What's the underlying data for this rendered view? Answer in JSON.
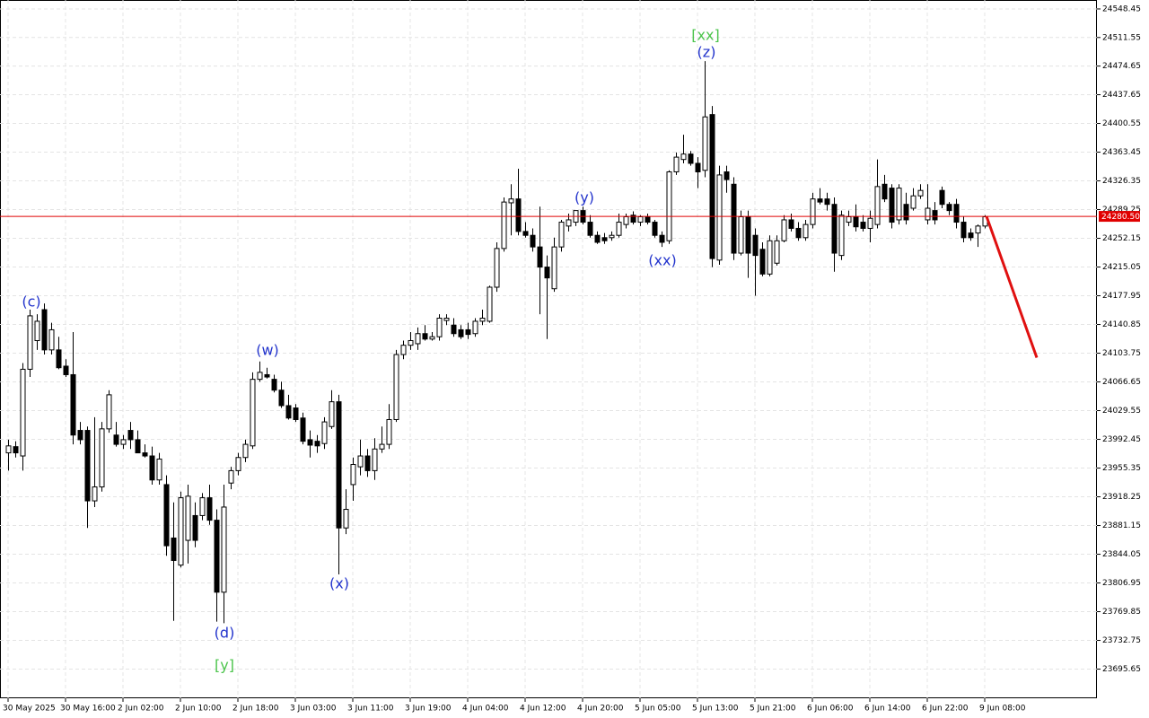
{
  "chart_data": {
    "type": "candlestick",
    "categories": [
      "30 May 2025",
      null,
      null,
      null,
      null,
      null,
      null,
      null,
      "30 May 16:00",
      null,
      null,
      null,
      null,
      null,
      null,
      null,
      "2 Jun 02:00",
      null,
      null,
      null,
      null,
      null,
      null,
      null,
      "2 Jun 10:00",
      null,
      null,
      null,
      null,
      null,
      null,
      null,
      "2 Jun 18:00",
      null,
      null,
      null,
      null,
      null,
      null,
      null,
      "3 Jun 03:00",
      null,
      null,
      null,
      null,
      null,
      null,
      null,
      "3 Jun 11:00",
      null,
      null,
      null,
      null,
      null,
      null,
      null,
      "3 Jun 19:00",
      null,
      null,
      null,
      null,
      null,
      null,
      null,
      "4 Jun 04:00",
      null,
      null,
      null,
      null,
      null,
      null,
      null,
      "4 Jun 12:00",
      null,
      null,
      null,
      null,
      null,
      null,
      null,
      "4 Jun 20:00",
      null,
      null,
      null,
      null,
      null,
      null,
      null,
      "5 Jun 05:00",
      null,
      null,
      null,
      null,
      null,
      null,
      null,
      "5 Jun 13:00",
      null,
      null,
      null,
      null,
      null,
      null,
      null,
      "5 Jun 21:00",
      null,
      null,
      null,
      null,
      null,
      null,
      null,
      "6 Jun 06:00",
      null,
      null,
      null,
      null,
      null,
      null,
      null,
      "6 Jun 14:00",
      null,
      null,
      null,
      null,
      null,
      null,
      null,
      "6 Jun 22:00",
      null,
      null,
      null,
      null,
      null,
      null,
      null,
      "9 Jun 08:00"
    ],
    "open": [
      23975,
      23983,
      23971,
      24083,
      24120,
      24160,
      24108,
      24108,
      24087,
      24076,
      24004,
      24004,
      23913,
      23931,
      24006,
      23998,
      23986,
      24004,
      23992,
      23975,
      23971,
      23940,
      23934,
      23865,
      23830,
      23862,
      23894,
      23894,
      23917,
      23888,
      23795,
      23936,
      23952,
      23969,
      23984,
      24070,
      24076,
      24070,
      24056,
      24036,
      24033,
      24020,
      23992,
      23990,
      23987,
      24009,
      24041,
      23878,
      23934,
      23957,
      23971,
      23952,
      23980,
      23986,
      24018,
      24102,
      24114,
      24116,
      24129,
      24122,
      24125,
      24146,
      24140,
      24134,
      24134,
      24129,
      24145,
      24145,
      24189,
      24239,
      24298,
      24303,
      24261,
      24256,
      24241,
      24215,
      24187,
      24241,
      24268,
      24273,
      24288,
      24273,
      24256,
      24253,
      24253,
      24256,
      24270,
      24282,
      24273,
      24280,
      24273,
      24256,
      24249,
      24338,
      24354,
      24361,
      24349,
      24340,
      24412,
      24224,
      24338,
      24322,
      24233,
      24280,
      24256,
      24238,
      24206,
      24220,
      24249,
      24276,
      24265,
      24253,
      24270,
      24303,
      24303,
      24296,
      24230,
      24273,
      24280,
      24273,
      24265,
      24270,
      24322,
      24317,
      24276,
      24296,
      24291,
      24307,
      24276,
      24288,
      24314,
      24296,
      24296,
      24273,
      24259,
      24259,
      24268
    ],
    "high": [
      23992,
      23990,
      24091,
      24160,
      24154,
      24168,
      24143,
      24125,
      24096,
      24131,
      24015,
      24009,
      24021,
      24015,
      24056,
      24015,
      23998,
      24015,
      24004,
      23986,
      23983,
      23975,
      23946,
      23911,
      23925,
      23934,
      23911,
      23923,
      23934,
      23902,
      23934,
      23957,
      23975,
      23992,
      24079,
      24093,
      24085,
      24076,
      24067,
      24050,
      24038,
      24027,
      24004,
      23998,
      24021,
      24056,
      24050,
      23928,
      23969,
      23992,
      23980,
      23994,
      24009,
      24038,
      24108,
      24120,
      24131,
      24137,
      24140,
      24131,
      24154,
      24154,
      24149,
      24140,
      24143,
      24149,
      24160,
      24191,
      24247,
      24305,
      24322,
      24342,
      24273,
      24265,
      24293,
      24230,
      24253,
      24276,
      24284,
      24288,
      24293,
      24282,
      24261,
      24259,
      24261,
      24284,
      24284,
      24287,
      24282,
      24284,
      24276,
      24261,
      24340,
      24363,
      24386,
      24365,
      24357,
      24481,
      24423,
      24346,
      24346,
      24331,
      24288,
      24288,
      24265,
      24247,
      24256,
      24256,
      24282,
      24284,
      24273,
      24276,
      24311,
      24317,
      24311,
      24305,
      24288,
      24288,
      24296,
      24282,
      24288,
      24354,
      24334,
      24322,
      24322,
      24311,
      24317,
      24322,
      24322,
      24299,
      24319,
      24299,
      24303,
      24280,
      24265,
      24270,
      24282
    ],
    "low": [
      23952,
      23969,
      23952,
      24073,
      24108,
      24102,
      24102,
      24083,
      24073,
      23986,
      23986,
      23878,
      23905,
      23925,
      24001,
      23983,
      23980,
      23980,
      23975,
      23969,
      23934,
      23934,
      23842,
      23758,
      23827,
      23832,
      23853,
      23888,
      23882,
      23757,
      23755,
      23928,
      23946,
      23963,
      23980,
      24067,
      24071,
      24053,
      24033,
      24018,
      24015,
      23986,
      23969,
      23975,
      23980,
      24006,
      23818,
      23870,
      23913,
      23946,
      23944,
      23940,
      23975,
      23980,
      24015,
      24096,
      24108,
      24108,
      24120,
      24120,
      24120,
      24140,
      24125,
      24122,
      24122,
      24125,
      24140,
      24143,
      24183,
      24235,
      24256,
      24256,
      24253,
      24235,
      24154,
      24122,
      24183,
      24235,
      24261,
      24268,
      24270,
      24253,
      24245,
      24245,
      24249,
      24253,
      24265,
      24270,
      24268,
      24270,
      24253,
      24241,
      24245,
      24334,
      24349,
      24346,
      24317,
      24331,
      24215,
      24218,
      24311,
      24224,
      24230,
      24201,
      24178,
      24203,
      24203,
      24217,
      24247,
      24261,
      24249,
      24249,
      24265,
      24296,
      24288,
      24209,
      24224,
      24268,
      24261,
      24261,
      24247,
      24265,
      24299,
      24265,
      24270,
      24270,
      24288,
      24303,
      24270,
      24270,
      24291,
      24282,
      24265,
      24247,
      24249,
      24241,
      24265
    ],
    "close": [
      23984,
      23975,
      24083,
      24152,
      24145,
      24108,
      24134,
      24085,
      24076,
      23998,
      23992,
      23913,
      23931,
      24006,
      24050,
      23986,
      23992,
      23992,
      23975,
      23971,
      23940,
      23967,
      23855,
      23836,
      23917,
      23919,
      23862,
      23917,
      23888,
      23795,
      23905,
      23952,
      23969,
      23986,
      24070,
      24079,
      24073,
      24056,
      24036,
      24020,
      24018,
      23990,
      23985,
      23984,
      24015,
      24041,
      23878,
      23902,
      23960,
      23971,
      23952,
      23980,
      23986,
      24018,
      24102,
      24114,
      24120,
      24129,
      24122,
      24125,
      24149,
      24149,
      24129,
      24125,
      24128,
      24145,
      24149,
      24189,
      24239,
      24299,
      24303,
      24261,
      24256,
      24241,
      24215,
      24201,
      24241,
      24273,
      24276,
      24288,
      24273,
      24256,
      24247,
      24249,
      24256,
      24273,
      24280,
      24273,
      24280,
      24273,
      24256,
      24247,
      24338,
      24357,
      24361,
      24349,
      24338,
      24409,
      24226,
      24334,
      24328,
      24233,
      24280,
      24233,
      24230,
      24206,
      24249,
      24249,
      24276,
      24265,
      24253,
      24270,
      24303,
      24299,
      24296,
      24233,
      24282,
      24280,
      24267,
      24265,
      24278,
      24319,
      24303,
      24273,
      24317,
      24276,
      24307,
      24314,
      24291,
      24276,
      24296,
      24288,
      24273,
      24253,
      24253,
      24268,
      24280
    ],
    "up_color": "#ffffff",
    "down_color": "#000000",
    "ylim": [
      23658,
      24560
    ],
    "yticks": [
      24548.45,
      24511.55,
      24474.65,
      24437.65,
      24400.55,
      24363.45,
      24326.35,
      24289.25,
      24252.15,
      24215.05,
      24177.95,
      24140.85,
      24103.75,
      24066.65,
      24029.55,
      23992.45,
      23955.35,
      23918.25,
      23881.15,
      23844.05,
      23806.95,
      23769.85,
      23732.75,
      23695.65
    ],
    "grid": true,
    "current_price": {
      "value": 24280.5,
      "label": "24280.50"
    },
    "price_line_color": "#e00000",
    "forecast": [
      24280.5,
      24098
    ],
    "forecast_color": "#e01010",
    "annotations": [
      {
        "text": "(c)",
        "color": "#2233cc"
      },
      {
        "text": "(d)",
        "color": "#2233cc"
      },
      {
        "text": "[y]",
        "color": "#4cc44c"
      },
      {
        "text": "(w)",
        "color": "#2233cc"
      },
      {
        "text": "(x)",
        "color": "#2233cc"
      },
      {
        "text": "(y)",
        "color": "#2233cc"
      },
      {
        "text": "(xx)",
        "color": "#2233cc"
      },
      {
        "text": "[xx]",
        "color": "#4cc44c"
      },
      {
        "text": "(z)",
        "color": "#2233cc"
      }
    ]
  }
}
